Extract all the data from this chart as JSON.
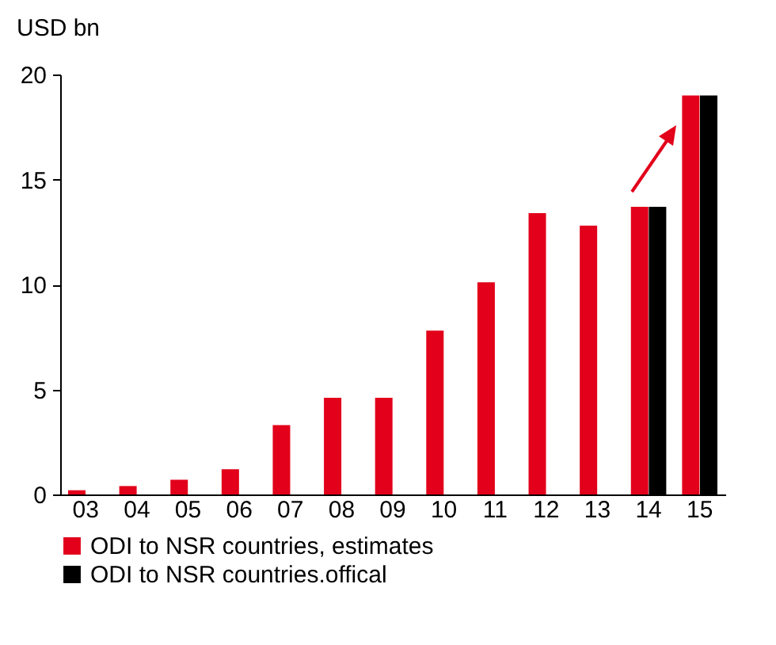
{
  "chart_data": {
    "type": "bar",
    "ylabel": "USD bn",
    "categories": [
      "03",
      "04",
      "05",
      "06",
      "07",
      "08",
      "09",
      "10",
      "11",
      "12",
      "13",
      "14",
      "15"
    ],
    "series": [
      {
        "name": "ODI to NSR countries, estimates",
        "color": "#e2001a",
        "values": [
          0.2,
          0.4,
          0.7,
          1.2,
          3.3,
          4.6,
          4.6,
          7.8,
          10.1,
          13.4,
          12.8,
          13.7,
          19.0
        ]
      },
      {
        "name": "ODI to NSR countries.offical",
        "color": "#000000",
        "values": [
          null,
          null,
          null,
          null,
          null,
          null,
          null,
          null,
          null,
          null,
          null,
          13.7,
          19.0
        ]
      }
    ],
    "ylim": [
      0,
      20
    ],
    "yticks": [
      0,
      5,
      10,
      15,
      20
    ],
    "grid": false,
    "legend": "bottom"
  }
}
